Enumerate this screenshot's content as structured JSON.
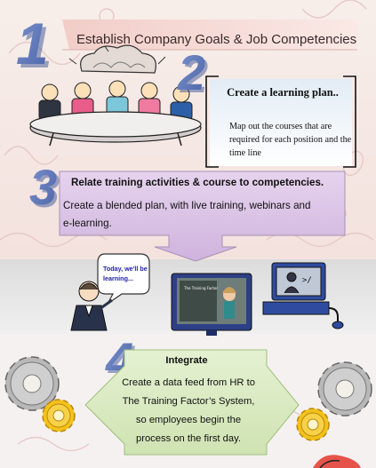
{
  "header": {
    "title": "Establish Company Goals & Job Competencies"
  },
  "step_numbers": [
    "1",
    "2",
    "3",
    "4"
  ],
  "step2": {
    "title": "Create a learning plan..",
    "body": "Map out the courses that are required for each position and the time line"
  },
  "step3": {
    "title": "Relate training activities & course to competencies.",
    "body": "Create a blended plan, with live training, webinars and e-learning."
  },
  "speech_bubble": {
    "text": "Today, we'll be learning..."
  },
  "step4": {
    "title": "Integrate",
    "body": "Create a data feed from HR to The Training Factor’s System, so employees begin the process on the first day."
  },
  "colors": {
    "number_blue": "#5a74b6",
    "title_banner": "#f4d6d2",
    "lavender_box": "#e7d4ec",
    "green_arrow": "#dfeec8",
    "monitor_blue": "#2d3f86"
  },
  "icons": [
    "meeting-illustration-icon",
    "brain-icon",
    "presenter-icon",
    "monitor-icon",
    "computer-icon",
    "gear-icon"
  ]
}
